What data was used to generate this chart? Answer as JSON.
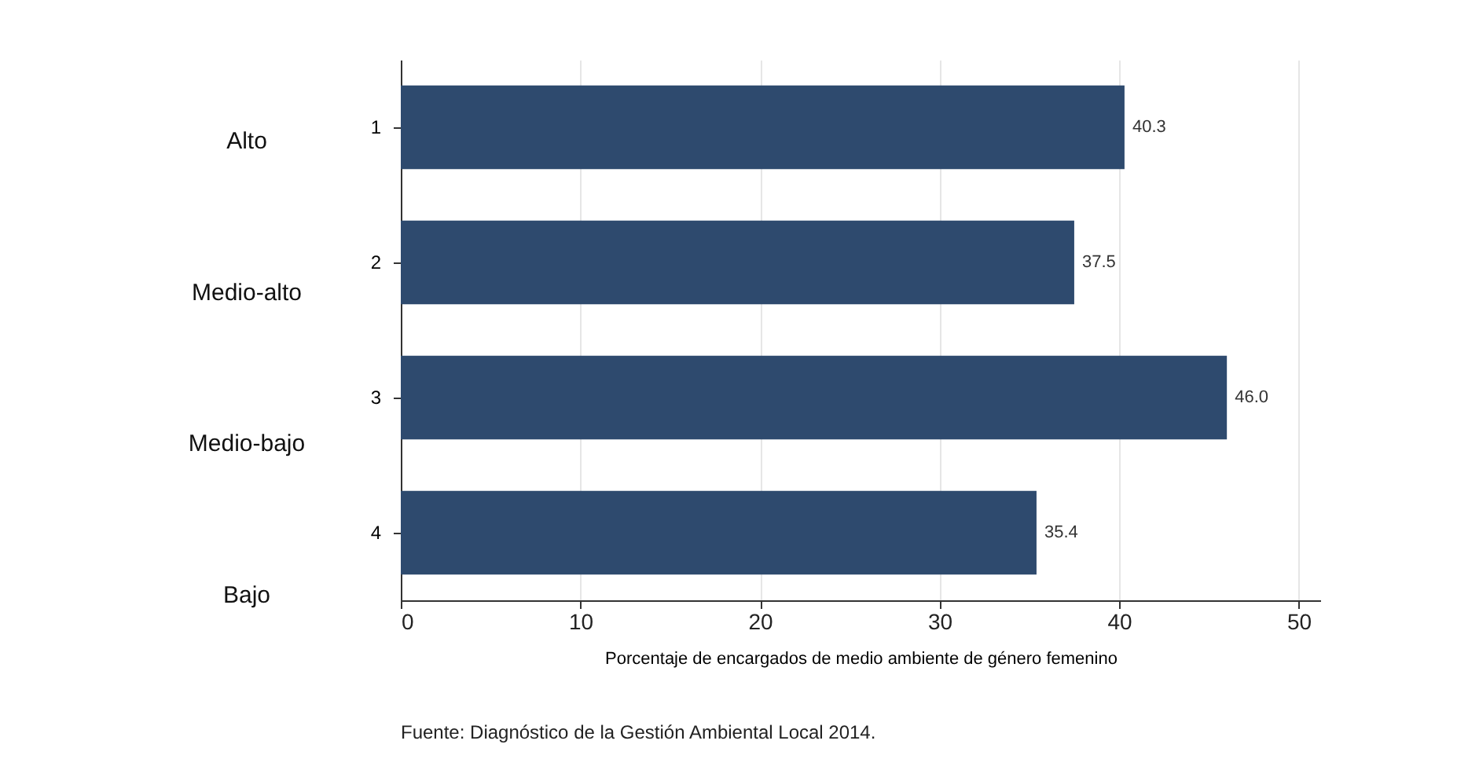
{
  "chart_data": {
    "type": "bar",
    "orientation": "horizontal",
    "categories": [
      "1",
      "2",
      "3",
      "4"
    ],
    "values": [
      40.3,
      37.5,
      46.0,
      35.4
    ],
    "value_labels": [
      "40.3",
      "37.5",
      "46.0",
      "35.4"
    ],
    "color": "#2e4a6e",
    "xlim": [
      0,
      51.2
    ],
    "xticks": [
      0,
      10,
      20,
      30,
      40,
      50
    ],
    "xlabel": "Porcentaje de encargados de medio ambiente de género femenino",
    "grid": "x",
    "annotations": [
      "Alto",
      "Medio-alto",
      "Medio-bajo",
      "Bajo",
      "Fuente: Diagnóstico de la Gestión Ambiental Local 2014."
    ]
  }
}
